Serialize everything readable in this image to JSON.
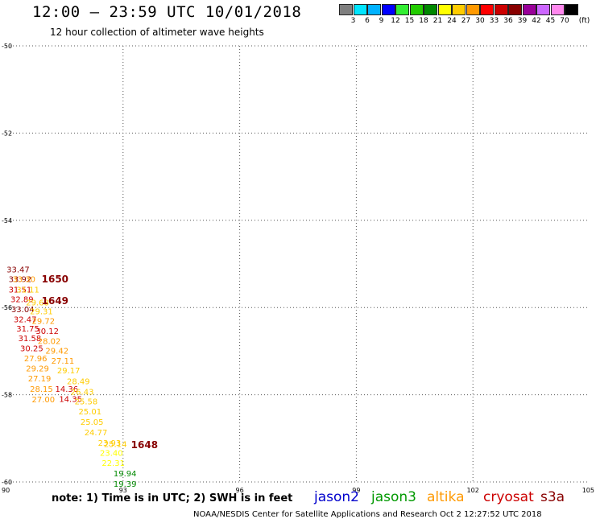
{
  "header": {
    "title": "12:00 – 23:59 UTC 10/01/2018",
    "subtitle": "12 hour collection of altimeter wave heights"
  },
  "colorbar": {
    "colors": [
      "#7f7f7f",
      "#00e5ff",
      "#00b2ff",
      "#0000ff",
      "#33ee33",
      "#22cc00",
      "#008800",
      "#ffff00",
      "#ffcc00",
      "#ff9900",
      "#ff0000",
      "#cc0000",
      "#880000",
      "#990099",
      "#cc66ff",
      "#ff88ee",
      "#000000"
    ],
    "ticks": [
      "3",
      "6",
      "9",
      "12",
      "15",
      "18",
      "21",
      "24",
      "27",
      "30",
      "33",
      "36",
      "39",
      "42",
      "45",
      "70"
    ],
    "unit": "(ft)"
  },
  "footer": {
    "note": "note:  1) Time is in UTC;  2) SWH is in feet",
    "credit": "NOAA/NESDIS Center for Satellite Applications and Research     Oct  2 12:27:52 UTC 2018"
  },
  "legend": [
    {
      "name": "jason2",
      "color": "#0000cc"
    },
    {
      "name": "jason3",
      "color": "#009900"
    },
    {
      "name": "altika",
      "color": "#ff9900"
    },
    {
      "name": "cryosat",
      "color": "#cc0000"
    },
    {
      "name": "s3a",
      "color": "#880000"
    }
  ],
  "chart_data": {
    "type": "scatter",
    "title": "12:00 – 23:59 UTC 10/01/2018",
    "xlim": [
      90,
      105
    ],
    "ylim": [
      -60,
      -50
    ],
    "x_ticks": [
      "90",
      "93",
      "96",
      "99",
      "102",
      "105"
    ],
    "y_ticks": [
      "-50",
      "-52",
      "-54",
      "-56",
      "-58",
      "-60"
    ],
    "grid": true,
    "points": [
      {
        "x": 90.3,
        "y": -55.12,
        "label": "33.47",
        "color": "#880000"
      },
      {
        "x": 90.35,
        "y": -55.34,
        "label": "33.92",
        "color": "#880000"
      },
      {
        "x": 90.45,
        "y": -55.34,
        "label": "33.30",
        "color": "#ff9900"
      },
      {
        "x": 90.35,
        "y": -55.58,
        "label": "31.51",
        "color": "#cc0000"
      },
      {
        "x": 90.55,
        "y": -55.58,
        "label": "31.11",
        "color": "#ffcc00"
      },
      {
        "x": 90.4,
        "y": -55.8,
        "label": "32.89",
        "color": "#cc0000"
      },
      {
        "x": 90.8,
        "y": -55.88,
        "label": "29.68",
        "color": "#ffcc00"
      },
      {
        "x": 90.42,
        "y": -56.03,
        "label": "33.04",
        "color": "#880000"
      },
      {
        "x": 90.9,
        "y": -56.08,
        "label": "29.31",
        "color": "#ffcc00"
      },
      {
        "x": 90.48,
        "y": -56.26,
        "label": "32.47",
        "color": "#cc0000"
      },
      {
        "x": 90.95,
        "y": -56.3,
        "label": "29.72",
        "color": "#ff9900"
      },
      {
        "x": 90.55,
        "y": -56.48,
        "label": "31.75",
        "color": "#cc0000"
      },
      {
        "x": 91.05,
        "y": -56.53,
        "label": "30.12",
        "color": "#cc0000"
      },
      {
        "x": 90.6,
        "y": -56.7,
        "label": "31.58",
        "color": "#cc0000"
      },
      {
        "x": 91.1,
        "y": -56.76,
        "label": "28.02",
        "color": "#ff9900"
      },
      {
        "x": 90.65,
        "y": -56.93,
        "label": "30.25",
        "color": "#cc0000"
      },
      {
        "x": 91.3,
        "y": -56.98,
        "label": "29.42",
        "color": "#ff9900"
      },
      {
        "x": 90.75,
        "y": -57.16,
        "label": "27.96",
        "color": "#ff9900"
      },
      {
        "x": 91.45,
        "y": -57.21,
        "label": "27.11",
        "color": "#ff9900"
      },
      {
        "x": 90.8,
        "y": -57.39,
        "label": "29.29",
        "color": "#ff9900"
      },
      {
        "x": 91.6,
        "y": -57.44,
        "label": "29.17",
        "color": "#ffcc00"
      },
      {
        "x": 90.85,
        "y": -57.62,
        "label": "27.19",
        "color": "#ff9900"
      },
      {
        "x": 91.85,
        "y": -57.68,
        "label": "28.49",
        "color": "#ffcc00"
      },
      {
        "x": 90.9,
        "y": -57.86,
        "label": "28.15",
        "color": "#ff9900"
      },
      {
        "x": 91.55,
        "y": -57.86,
        "label": "14.36",
        "color": "#cc0000"
      },
      {
        "x": 91.95,
        "y": -57.92,
        "label": "26.43",
        "color": "#ffcc00"
      },
      {
        "x": 90.95,
        "y": -58.1,
        "label": "27.00",
        "color": "#ff9900"
      },
      {
        "x": 91.65,
        "y": -58.09,
        "label": "14.35",
        "color": "#cc0000"
      },
      {
        "x": 92.05,
        "y": -58.15,
        "label": "25.58",
        "color": "#ffcc00"
      },
      {
        "x": 92.15,
        "y": -58.38,
        "label": "25.01",
        "color": "#ffcc00"
      },
      {
        "x": 92.2,
        "y": -58.62,
        "label": "25.05",
        "color": "#ffcc00"
      },
      {
        "x": 92.3,
        "y": -58.86,
        "label": "24.77",
        "color": "#ffcc00"
      },
      {
        "x": 92.65,
        "y": -59.1,
        "label": "23.93",
        "color": "#ffcc00"
      },
      {
        "x": 92.8,
        "y": -59.12,
        "label": "25.14",
        "color": "#ffcc00"
      },
      {
        "x": 92.7,
        "y": -59.33,
        "label": "23.40",
        "color": "#ffff00"
      },
      {
        "x": 92.75,
        "y": -59.56,
        "label": "22.31",
        "color": "#ffff00"
      },
      {
        "x": 93.05,
        "y": -59.8,
        "label": "19.94",
        "color": "#008800"
      },
      {
        "x": 93.05,
        "y": -60.04,
        "label": "19.39",
        "color": "#008800"
      }
    ],
    "time_labels": [
      {
        "x": 91.25,
        "y": -55.35,
        "label": "1650"
      },
      {
        "x": 91.25,
        "y": -55.85,
        "label": "1649"
      },
      {
        "x": 93.55,
        "y": -59.15,
        "label": "1648"
      }
    ]
  }
}
